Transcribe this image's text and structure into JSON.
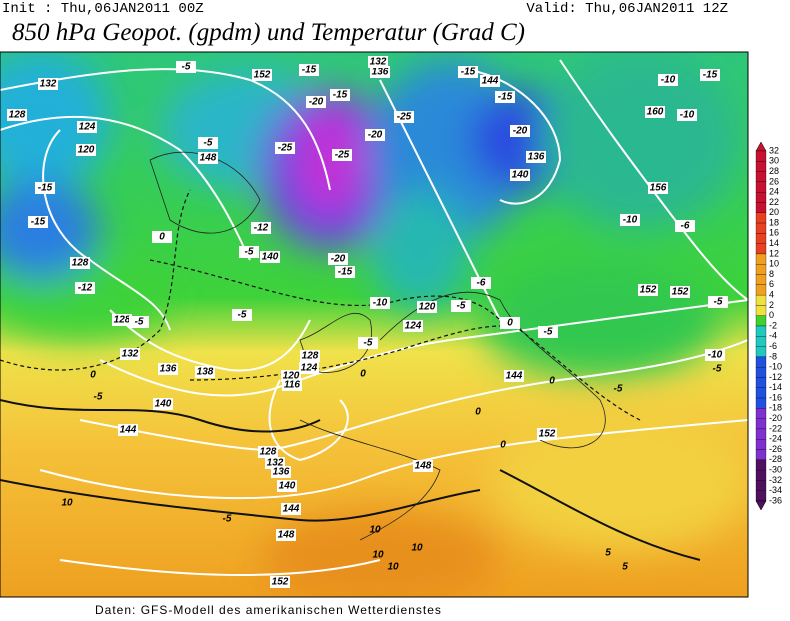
{
  "header": {
    "init": "Init : Thu,06JAN2011 00Z",
    "valid": "Valid: Thu,06JAN2011 12Z",
    "title": "850 hPa Geopot. (gpdm) und Temperatur (Grad C)"
  },
  "footer": "Daten: GFS-Modell des amerikanischen Wetterdienstes",
  "colorbar": {
    "labels": [
      32,
      30,
      28,
      26,
      24,
      22,
      20,
      18,
      16,
      14,
      12,
      10,
      8,
      6,
      4,
      2,
      0,
      -2,
      -4,
      -6,
      -8,
      -10,
      -12,
      -14,
      -16,
      -18,
      -20,
      -22,
      -24,
      -26,
      -28,
      -30,
      -32,
      -34,
      -36
    ]
  },
  "map": {
    "labels": [
      "132",
      "128",
      "124",
      "120",
      "-15",
      "-15",
      "128",
      "-12",
      "128",
      "-5",
      "132",
      "136",
      "138",
      "140",
      "144",
      "-5",
      "0",
      "10",
      "-5",
      "148",
      "-5",
      "152",
      "-15",
      "-15",
      "-20",
      "-25",
      "-25",
      "-20",
      "-25",
      "136",
      "132",
      "144",
      "-15",
      "-15",
      "-20",
      "136",
      "140",
      "160",
      "-10",
      "-15",
      "-10",
      "156",
      "-10",
      "-6",
      "152",
      "152",
      "-5",
      "0",
      "140",
      "-5",
      "-5",
      "-12",
      "-15",
      "-20",
      "-10",
      "120",
      "124",
      "-5",
      "-6",
      "-5",
      "0",
      "128",
      "124",
      "120",
      "116",
      "0",
      "-5",
      "144",
      "0",
      "-5",
      "152",
      "128",
      "132",
      "136",
      "140",
      "144",
      "148",
      "152",
      "148",
      "-5",
      "10",
      "10",
      "10",
      "10",
      "5",
      "5",
      "-5",
      "-10",
      "0",
      "0"
    ]
  }
}
